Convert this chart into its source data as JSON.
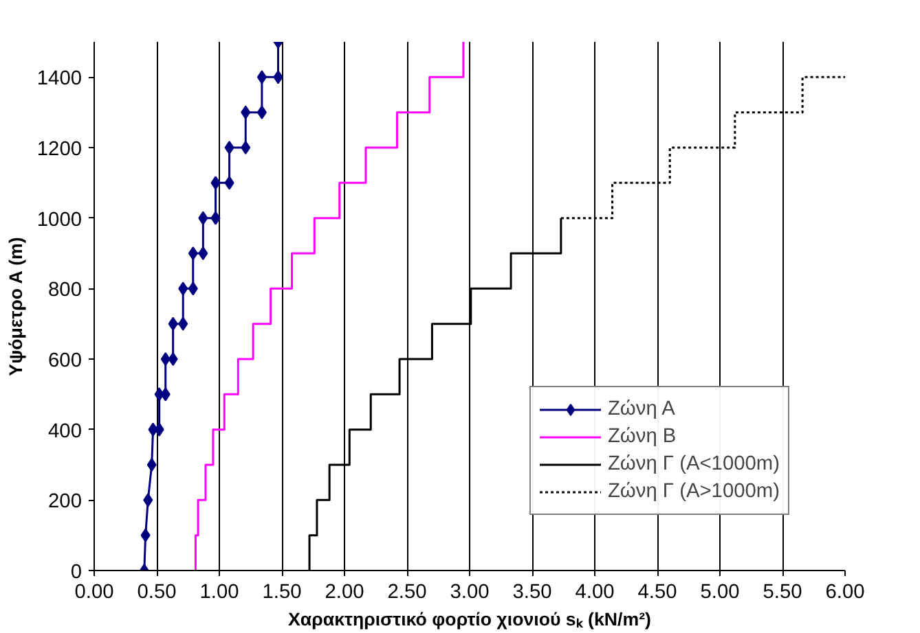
{
  "chart_data": {
    "type": "line",
    "xlabel": "Χαρακτηριστικό φορτίο χιονιού sₖ (kN/m²)",
    "ylabel": "Υψόμετρο Α (m)",
    "xlim": [
      0,
      6
    ],
    "ylim": [
      0,
      1500
    ],
    "xticks": [
      {
        "value": 0,
        "label": "0.00"
      },
      {
        "value": 0.5,
        "label": "0.50"
      },
      {
        "value": 1,
        "label": "1.00"
      },
      {
        "value": 1.5,
        "label": "1.50"
      },
      {
        "value": 2,
        "label": "2.00"
      },
      {
        "value": 2.5,
        "label": "2.50"
      },
      {
        "value": 3,
        "label": "3.00"
      },
      {
        "value": 3.5,
        "label": "3.50"
      },
      {
        "value": 4,
        "label": "4.00"
      },
      {
        "value": 4.5,
        "label": "4.50"
      },
      {
        "value": 5,
        "label": "5.00"
      },
      {
        "value": 5.5,
        "label": "5.50"
      },
      {
        "value": 6,
        "label": "6.00"
      }
    ],
    "yticks": [
      0,
      200,
      400,
      600,
      800,
      1000,
      1200,
      1400
    ],
    "grid": "x",
    "legend": "bottom right",
    "series": [
      {
        "name": "Ζώνη Α",
        "color": "#000080",
        "marker": "diamond",
        "line_style": "solid",
        "x": [
          0.4,
          0.41,
          0.43,
          0.46,
          0.47,
          0.52,
          0.52,
          0.57,
          0.57,
          0.63,
          0.63,
          0.71,
          0.71,
          0.79,
          0.79,
          0.87,
          0.87,
          0.97,
          0.97,
          1.08,
          1.08,
          1.21,
          1.21,
          1.34,
          1.34,
          1.47,
          1.47
        ],
        "values": [
          0,
          100,
          200,
          300,
          400,
          400,
          500,
          500,
          600,
          600,
          700,
          700,
          800,
          800,
          900,
          900,
          1000,
          1000,
          1100,
          1100,
          1200,
          1200,
          1300,
          1300,
          1400,
          1400,
          1500
        ]
      },
      {
        "name": "Ζώνη Β",
        "color": "#ff00ff",
        "marker": "none",
        "line_style": "solid",
        "x": [
          0.81,
          0.81,
          0.83,
          0.83,
          0.89,
          0.89,
          0.95,
          0.95,
          1.04,
          1.04,
          1.15,
          1.15,
          1.27,
          1.27,
          1.41,
          1.41,
          1.58,
          1.58,
          1.76,
          1.76,
          1.96,
          1.96,
          2.17,
          2.17,
          2.42,
          2.42,
          2.68,
          2.68,
          2.95,
          2.95
        ],
        "values": [
          0,
          100,
          100,
          200,
          200,
          300,
          300,
          400,
          400,
          500,
          500,
          600,
          600,
          700,
          700,
          800,
          800,
          900,
          900,
          1000,
          1000,
          1100,
          1100,
          1200,
          1200,
          1300,
          1300,
          1400,
          1400,
          1500
        ]
      },
      {
        "name": "Ζώνη Γ (Α<1000m)",
        "color": "#000000",
        "marker": "none",
        "line_style": "solid",
        "x": [
          1.72,
          1.72,
          1.78,
          1.78,
          1.88,
          1.88,
          2.04,
          2.04,
          2.21,
          2.21,
          2.44,
          2.44,
          2.7,
          2.7,
          3.01,
          3.01,
          3.33,
          3.33,
          3.73,
          3.73
        ],
        "values": [
          0,
          100,
          100,
          200,
          200,
          300,
          300,
          400,
          400,
          500,
          500,
          600,
          600,
          700,
          700,
          800,
          800,
          900,
          900,
          1000
        ]
      },
      {
        "name": "Ζώνη Γ (Α>1000m)",
        "color": "#000000",
        "marker": "none",
        "line_style": "dotted",
        "x": [
          3.73,
          4.14,
          4.14,
          4.6,
          4.6,
          5.12,
          5.12,
          5.66,
          5.66,
          6.0
        ],
        "values": [
          1000,
          1000,
          1100,
          1100,
          1200,
          1200,
          1300,
          1300,
          1400,
          1400
        ]
      }
    ]
  }
}
